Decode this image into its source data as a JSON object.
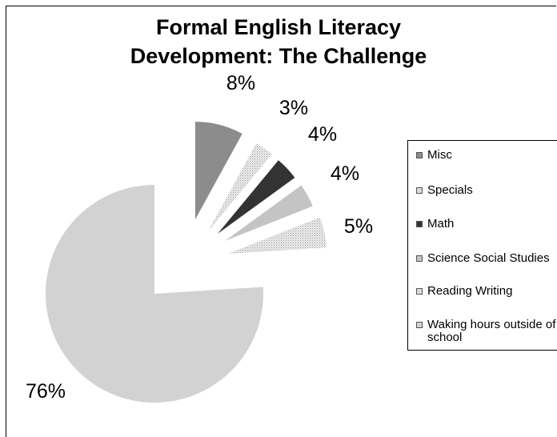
{
  "chart_data": {
    "type": "pie",
    "title_lines": [
      "Formal English Literacy",
      "Development: The Challenge"
    ],
    "slices": [
      {
        "label": "Misc",
        "value": 8,
        "display": "8%",
        "color": "#8c8c8c",
        "pattern": "solid"
      },
      {
        "label": "Specials",
        "value": 3,
        "display": "3%",
        "color": "#e2e2e2",
        "pattern": "dots"
      },
      {
        "label": "Math",
        "value": 4,
        "display": "4%",
        "color": "#333333",
        "pattern": "solid"
      },
      {
        "label": "Science  Social Studies",
        "value": 4,
        "display": "4%",
        "color": "#c4c4c4",
        "pattern": "solid"
      },
      {
        "label": "Reading  Writing",
        "value": 5,
        "display": "5%",
        "color": "#dcdcdc",
        "pattern": "dots"
      },
      {
        "label": "Waking hours outside of school",
        "value": 76,
        "display": "76%",
        "color": "#d2d2d2",
        "pattern": "solid"
      }
    ],
    "legend_position": "right"
  }
}
